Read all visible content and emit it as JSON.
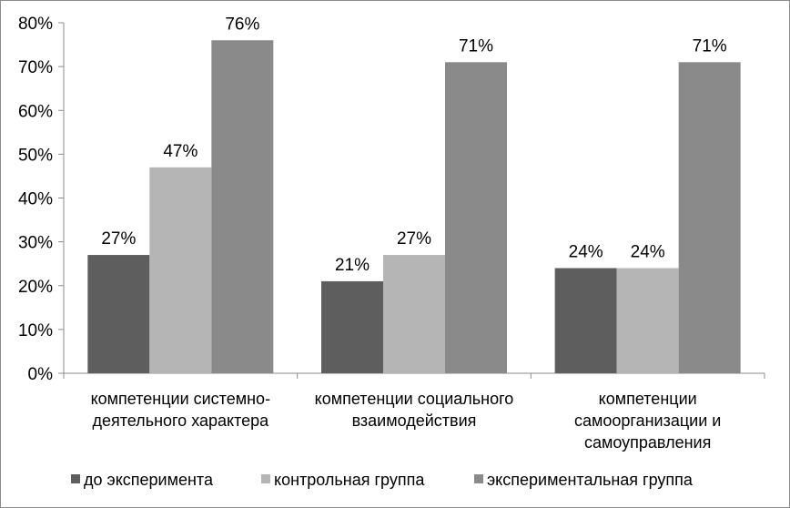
{
  "chart_data": {
    "type": "bar",
    "title": "",
    "xlabel": "",
    "ylabel": "",
    "ylim": [
      0,
      80
    ],
    "yticks": [
      0,
      10,
      20,
      30,
      40,
      50,
      60,
      70,
      80
    ],
    "ytick_labels": [
      "0%",
      "10%",
      "20%",
      "30%",
      "40%",
      "50%",
      "60%",
      "70%",
      "80%"
    ],
    "grid": false,
    "legend_position": "bottom",
    "categories": [
      [
        "компетенции системно-",
        "деятельного характера"
      ],
      [
        "компетенции социального",
        "взаимодействия"
      ],
      [
        "компетенции",
        "самоорганизации и",
        "самоуправления"
      ]
    ],
    "series": [
      {
        "name": "до эксперимента",
        "color": "#5e5e5e",
        "values": [
          27,
          21,
          24
        ],
        "labels": [
          "27%",
          "21%",
          "24%"
        ]
      },
      {
        "name": "контрольная группа",
        "color": "#b5b5b5",
        "values": [
          47,
          27,
          24
        ],
        "labels": [
          "47%",
          "27%",
          "24%"
        ]
      },
      {
        "name": "экспериментальная группа",
        "color": "#8a8a8a",
        "values": [
          76,
          71,
          71
        ],
        "labels": [
          "76%",
          "71%",
          "71%"
        ]
      }
    ]
  }
}
